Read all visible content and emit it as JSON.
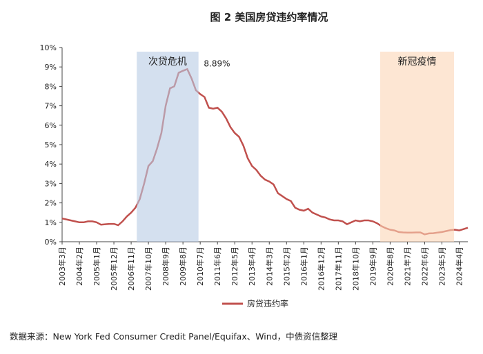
{
  "chart_data": {
    "type": "line",
    "title": "图 2  美国房贷违约率情况",
    "source": "数据来源：New York Fed Consumer Credit Panel/Equifax、Wind，中债资信整理",
    "categories": [
      "2003年3月",
      null,
      null,
      null,
      "2004年2月",
      null,
      null,
      null,
      "2005年1月",
      null,
      null,
      null,
      "2005年12月",
      null,
      null,
      null,
      "2006年11月",
      null,
      null,
      null,
      "2007年10月",
      null,
      null,
      null,
      "2008年9月",
      null,
      null,
      null,
      "2009年8月",
      null,
      null,
      null,
      "2010年7月",
      null,
      null,
      null,
      "2011年6月",
      null,
      null,
      null,
      "2012年5月",
      null,
      null,
      null,
      "2013年4月",
      null,
      null,
      null,
      "2014年3月",
      null,
      null,
      null,
      "2015年2月",
      null,
      null,
      null,
      "2016年1月",
      null,
      null,
      null,
      "2016年12月",
      null,
      null,
      null,
      "2017年11月",
      null,
      null,
      null,
      "2018年10月",
      null,
      null,
      null,
      "2019年9月",
      null,
      null,
      null,
      "2020年8月",
      null,
      null,
      null,
      "2021年7月",
      null,
      null,
      null,
      "2022年6月",
      null,
      null,
      null,
      "2023年5月",
      null,
      null,
      null,
      "2024年4月",
      null,
      null
    ],
    "series": [
      {
        "name": "房贷违约率",
        "color": "#c0504d",
        "values": [
          1.2,
          1.15,
          1.1,
          1.05,
          1.0,
          1.0,
          1.05,
          1.05,
          1.0,
          0.88,
          0.9,
          0.92,
          0.92,
          0.85,
          1.05,
          1.3,
          1.5,
          1.75,
          2.2,
          3.0,
          3.9,
          4.15,
          4.8,
          5.6,
          7.0,
          7.9,
          8.0,
          8.7,
          8.8,
          8.89,
          8.4,
          7.8,
          7.6,
          7.45,
          6.9,
          6.85,
          6.9,
          6.7,
          6.35,
          5.9,
          5.6,
          5.4,
          4.95,
          4.3,
          3.9,
          3.7,
          3.4,
          3.2,
          3.1,
          2.95,
          2.5,
          2.35,
          2.2,
          2.1,
          1.75,
          1.65,
          1.6,
          1.7,
          1.5,
          1.4,
          1.3,
          1.25,
          1.15,
          1.1,
          1.1,
          1.05,
          0.9,
          1.0,
          1.1,
          1.05,
          1.1,
          1.1,
          1.05,
          0.95,
          0.8,
          0.7,
          0.62,
          0.58,
          0.5,
          0.48,
          0.47,
          0.47,
          0.48,
          0.48,
          0.38,
          0.43,
          0.44,
          0.47,
          0.5,
          0.55,
          0.6,
          0.62,
          0.58,
          0.65,
          0.72
        ],
        "value_labels": [
          null,
          null,
          null,
          null,
          null,
          null,
          null,
          null,
          null,
          null,
          null,
          null,
          null,
          null,
          null,
          null,
          null,
          null,
          null,
          null,
          null,
          null,
          null,
          null,
          null,
          null,
          null,
          null,
          null,
          "8.89%",
          null,
          null,
          null,
          null,
          null,
          null,
          null,
          null,
          null,
          null,
          null,
          null,
          null,
          null,
          null,
          null,
          null,
          null,
          null,
          null,
          null,
          null,
          null,
          null,
          null,
          null,
          null,
          null,
          null,
          null,
          null,
          null,
          null,
          null,
          null,
          null,
          null,
          null,
          null,
          null,
          null,
          null,
          null,
          null,
          null,
          null,
          null,
          null,
          null,
          null,
          null,
          null,
          null,
          null,
          null,
          null,
          null,
          null,
          null,
          null,
          null,
          null,
          null,
          null,
          null
        ]
      }
    ],
    "bands": [
      {
        "label": "次贷危机",
        "start": 17.3,
        "end": 31.6,
        "color": "#b8cce4"
      },
      {
        "label": "新冠疫情",
        "start": 73.7,
        "end": 90.8,
        "color": "#fbd5b5"
      }
    ],
    "ylim": [
      0,
      10
    ],
    "yticks": [
      {
        "value": 0,
        "label": "0%"
      },
      {
        "value": 1,
        "label": "1%"
      },
      {
        "value": 2,
        "label": "2%"
      },
      {
        "value": 3,
        "label": "3%"
      },
      {
        "value": 4,
        "label": "4%"
      },
      {
        "value": 5,
        "label": "5%"
      },
      {
        "value": 6,
        "label": "6%"
      },
      {
        "value": 7,
        "label": "7%"
      },
      {
        "value": 8,
        "label": "8%"
      },
      {
        "value": 9,
        "label": "9%"
      },
      {
        "value": 10,
        "label": "10%"
      }
    ],
    "legend": "bottom"
  }
}
